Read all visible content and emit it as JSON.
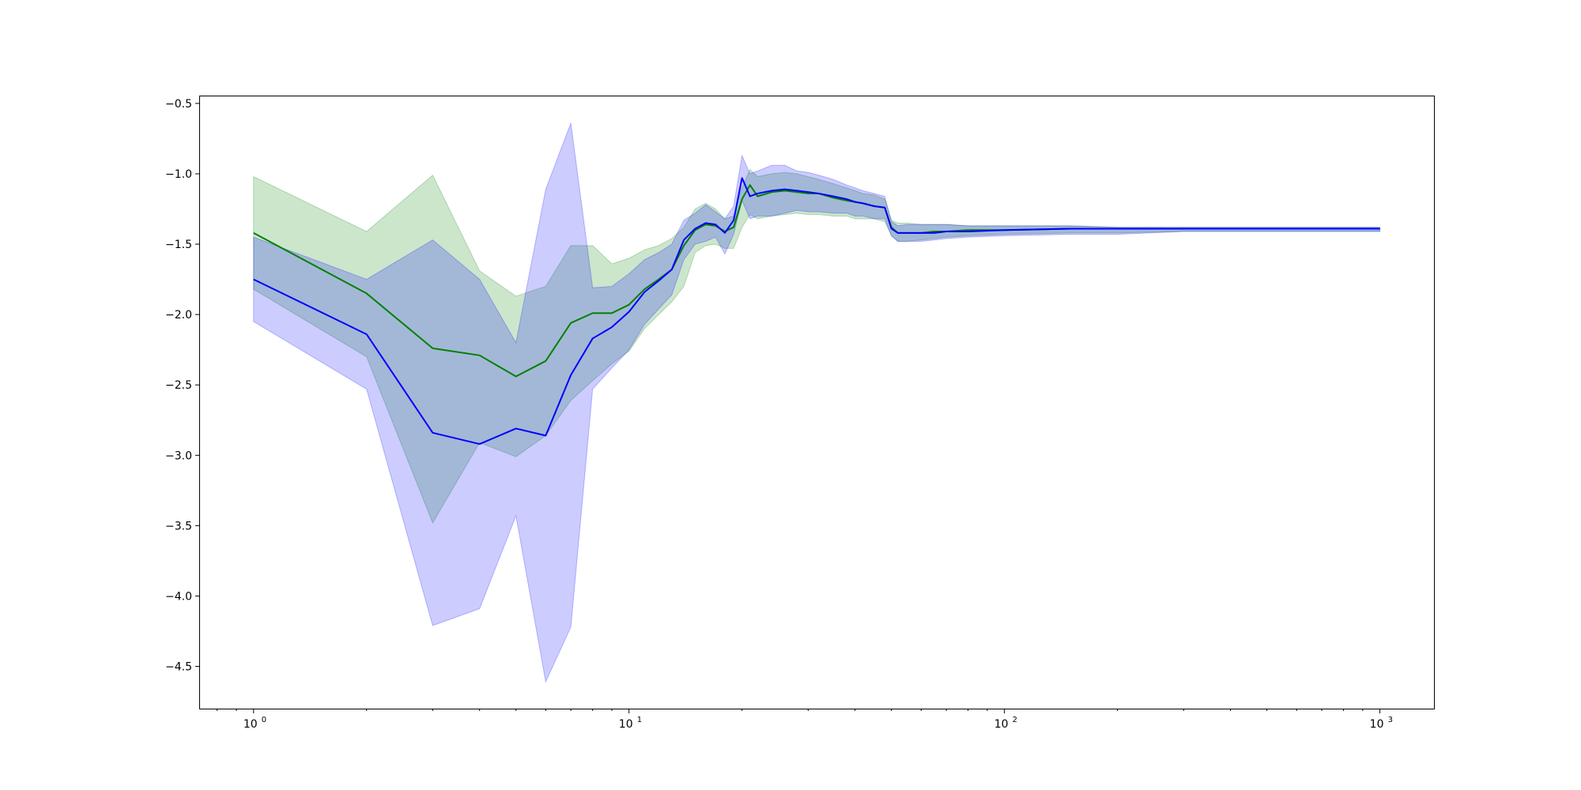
{
  "chart_data": {
    "type": "line",
    "title": "",
    "xlabel": "",
    "ylabel": "",
    "x_scale": "log",
    "xlim": [
      0.72,
      1400
    ],
    "ylim": [
      -4.8,
      -0.45
    ],
    "grid": false,
    "legend": "none",
    "x_tick_labels": [
      {
        "value": 1,
        "base": "10",
        "exponent": "0"
      },
      {
        "value": 10,
        "base": "10",
        "exponent": "1"
      },
      {
        "value": 100,
        "base": "10",
        "exponent": "2"
      },
      {
        "value": 1000,
        "base": "10",
        "exponent": "3"
      }
    ],
    "y_ticks": [
      -0.5,
      -1.0,
      -1.5,
      -2.0,
      -2.5,
      -3.0,
      -3.5,
      -4.0,
      -4.5
    ],
    "y_tick_labels": [
      "−0.5",
      "−1.0",
      "−1.5",
      "−2.0",
      "−2.5",
      "−3.0",
      "−3.5",
      "−4.0",
      "−4.5"
    ],
    "series": [
      {
        "color": "#008000",
        "band_color": "#008000",
        "band_opacity": 0.2,
        "x": [
          1,
          2,
          3,
          4,
          5,
          6,
          7,
          8,
          9,
          10,
          11,
          12,
          13,
          14,
          15,
          16,
          17,
          18,
          19,
          20,
          21,
          22,
          24,
          26,
          28,
          30,
          32,
          35,
          38,
          40,
          42,
          45,
          48,
          50,
          52,
          55,
          60,
          65,
          70,
          80,
          100,
          150,
          200,
          300,
          500,
          700,
          1000
        ],
        "values": [
          -1.42,
          -1.85,
          -2.24,
          -2.29,
          -2.44,
          -2.33,
          -2.06,
          -1.99,
          -1.99,
          -1.93,
          -1.82,
          -1.75,
          -1.68,
          -1.51,
          -1.4,
          -1.36,
          -1.37,
          -1.41,
          -1.38,
          -1.18,
          -1.08,
          -1.16,
          -1.13,
          -1.12,
          -1.13,
          -1.14,
          -1.14,
          -1.17,
          -1.19,
          -1.2,
          -1.21,
          -1.23,
          -1.24,
          -1.38,
          -1.42,
          -1.42,
          -1.42,
          -1.41,
          -1.41,
          -1.4,
          -1.4,
          -1.39,
          -1.39,
          -1.39,
          -1.39,
          -1.39,
          -1.39
        ],
        "upper": [
          -1.02,
          -1.41,
          -1.01,
          -1.69,
          -1.87,
          -1.8,
          -1.51,
          -1.51,
          -1.64,
          -1.6,
          -1.54,
          -1.51,
          -1.46,
          -1.38,
          -1.25,
          -1.21,
          -1.25,
          -1.32,
          -1.3,
          -1.1,
          -0.97,
          -1.02,
          -1.0,
          -0.99,
          -1.0,
          -1.02,
          -1.04,
          -1.07,
          -1.1,
          -1.12,
          -1.14,
          -1.15,
          -1.18,
          -1.33,
          -1.35,
          -1.35,
          -1.36,
          -1.36,
          -1.36,
          -1.37,
          -1.37,
          -1.37,
          -1.38,
          -1.38,
          -1.38,
          -1.38,
          -1.38
        ],
        "lower": [
          -1.82,
          -2.3,
          -3.48,
          -2.91,
          -3.01,
          -2.86,
          -2.61,
          -2.47,
          -2.35,
          -2.26,
          -2.1,
          -2.0,
          -1.91,
          -1.8,
          -1.56,
          -1.51,
          -1.5,
          -1.53,
          -1.53,
          -1.38,
          -1.29,
          -1.32,
          -1.3,
          -1.29,
          -1.28,
          -1.29,
          -1.29,
          -1.3,
          -1.3,
          -1.32,
          -1.32,
          -1.32,
          -1.34,
          -1.44,
          -1.48,
          -1.48,
          -1.47,
          -1.46,
          -1.45,
          -1.44,
          -1.43,
          -1.42,
          -1.42,
          -1.41,
          -1.41,
          -1.41,
          -1.41
        ]
      },
      {
        "color": "#0000ff",
        "band_color": "#0000ff",
        "band_opacity": 0.2,
        "x": [
          1,
          2,
          3,
          4,
          5,
          6,
          7,
          8,
          9,
          10,
          11,
          12,
          13,
          14,
          15,
          16,
          17,
          18,
          19,
          20,
          21,
          22,
          24,
          26,
          28,
          30,
          32,
          35,
          38,
          40,
          42,
          45,
          48,
          50,
          52,
          55,
          60,
          65,
          70,
          80,
          100,
          150,
          200,
          300,
          500,
          700,
          1000
        ],
        "values": [
          -1.75,
          -2.14,
          -2.84,
          -2.92,
          -2.81,
          -2.86,
          -2.43,
          -2.17,
          -2.09,
          -1.98,
          -1.84,
          -1.76,
          -1.68,
          -1.47,
          -1.39,
          -1.35,
          -1.36,
          -1.42,
          -1.33,
          -1.03,
          -1.16,
          -1.14,
          -1.12,
          -1.11,
          -1.12,
          -1.13,
          -1.14,
          -1.16,
          -1.18,
          -1.2,
          -1.21,
          -1.23,
          -1.24,
          -1.39,
          -1.42,
          -1.42,
          -1.42,
          -1.42,
          -1.41,
          -1.41,
          -1.4,
          -1.39,
          -1.39,
          -1.39,
          -1.39,
          -1.39,
          -1.39
        ],
        "upper": [
          -1.45,
          -1.75,
          -1.47,
          -1.75,
          -2.2,
          -1.11,
          -0.64,
          -1.81,
          -1.8,
          -1.71,
          -1.61,
          -1.56,
          -1.5,
          -1.33,
          -1.28,
          -1.22,
          -1.27,
          -1.32,
          -1.23,
          -0.87,
          -1.0,
          -0.98,
          -0.94,
          -0.94,
          -0.98,
          -0.99,
          -1.01,
          -1.04,
          -1.08,
          -1.1,
          -1.12,
          -1.14,
          -1.16,
          -1.34,
          -1.37,
          -1.36,
          -1.36,
          -1.36,
          -1.36,
          -1.37,
          -1.37,
          -1.37,
          -1.38,
          -1.38,
          -1.38,
          -1.38,
          -1.38
        ],
        "lower": [
          -2.05,
          -2.53,
          -4.21,
          -4.09,
          -3.43,
          -4.61,
          -4.22,
          -2.53,
          -2.38,
          -2.25,
          -2.07,
          -1.96,
          -1.86,
          -1.61,
          -1.5,
          -1.48,
          -1.45,
          -1.57,
          -1.43,
          -1.19,
          -1.32,
          -1.3,
          -1.3,
          -1.28,
          -1.26,
          -1.27,
          -1.27,
          -1.28,
          -1.28,
          -1.3,
          -1.3,
          -1.32,
          -1.32,
          -1.44,
          -1.48,
          -1.48,
          -1.48,
          -1.47,
          -1.46,
          -1.45,
          -1.44,
          -1.43,
          -1.43,
          -1.41,
          -1.41,
          -1.41,
          -1.41
        ]
      }
    ]
  }
}
